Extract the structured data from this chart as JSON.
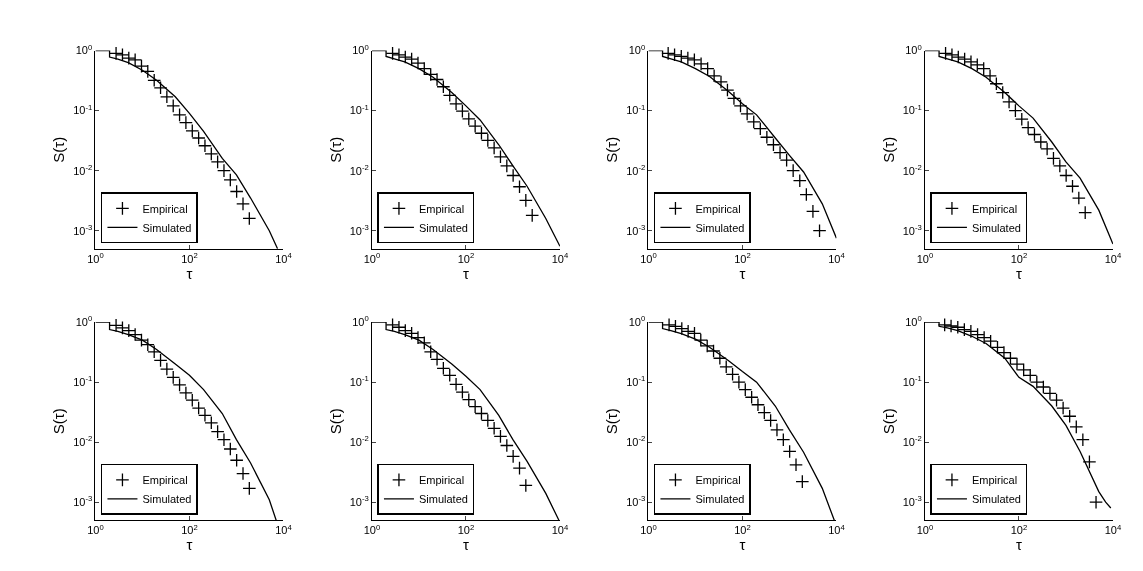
{
  "chart_data": [
    {
      "type": "scatter",
      "xlabel": "τ",
      "ylabel": "S(τ)",
      "log": "xy",
      "legend": "bottom left",
      "xlim": [
        1,
        10000
      ],
      "ylim": [
        0.0005,
        1
      ],
      "xticks": [
        {
          "value": 1,
          "label": "10$^{0}$"
        },
        {
          "value": 100,
          "label": "10$^{2}$"
        },
        {
          "value": 10000,
          "label": "10$^{4}$"
        }
      ],
      "yticks": [
        {
          "value": 0.001,
          "label": "10$^{-3}$"
        },
        {
          "value": 0.01,
          "label": "10$^{-2}$"
        },
        {
          "value": 0.1,
          "label": "10$^{-1}$"
        },
        {
          "value": 1,
          "label": "10$^{0}$"
        }
      ],
      "series": [
        {
          "name": "Empirical",
          "type": "scatter",
          "marker": "cross",
          "color": "#000000",
          "x": [
            2.75,
            3.76,
            5.13,
            7.0,
            9.55,
            13.0,
            17.8,
            24.3,
            33.1,
            45.2,
            61.7,
            84.1,
            115,
            157,
            214,
            292,
            398,
            543,
            741,
            1010,
            1380,
            1880
          ],
          "values": [
            0.9,
            0.85,
            0.75,
            0.7,
            0.55,
            0.45,
            0.32,
            0.24,
            0.17,
            0.12,
            0.085,
            0.063,
            0.046,
            0.035,
            0.026,
            0.019,
            0.014,
            0.01,
            0.007,
            0.0045,
            0.0028,
            0.0016
          ]
        },
        {
          "name": "Simulated",
          "type": "line",
          "line_style": "solid",
          "color": "#000000",
          "x": [
            1,
            2,
            2,
            3,
            5,
            10,
            20,
            50,
            100,
            200,
            500,
            1000,
            2000,
            5000,
            7500
          ],
          "values": [
            1,
            1,
            0.78,
            0.72,
            0.63,
            0.47,
            0.32,
            0.17,
            0.09,
            0.045,
            0.016,
            0.0085,
            0.0035,
            0.001,
            0.0005
          ]
        }
      ]
    },
    {
      "type": "scatter",
      "xlabel": "τ",
      "ylabel": "S(τ)",
      "log": "xy",
      "legend": "bottom left",
      "xlim": [
        1,
        10000
      ],
      "ylim": [
        0.0005,
        1
      ],
      "xticks": [
        {
          "value": 1,
          "label": "10$^{0}$"
        },
        {
          "value": 100,
          "label": "10$^{2}$"
        },
        {
          "value": 10000,
          "label": "10$^{4}$"
        }
      ],
      "yticks": [
        {
          "value": 0.001,
          "label": "10$^{-3}$"
        },
        {
          "value": 0.01,
          "label": "10$^{-2}$"
        },
        {
          "value": 0.1,
          "label": "10$^{-1}$"
        },
        {
          "value": 1,
          "label": "10$^{0}$"
        }
      ],
      "series": [
        {
          "name": "Empirical",
          "type": "scatter",
          "marker": "cross",
          "color": "#000000",
          "x": [
            2.75,
            3.76,
            5.13,
            7.0,
            9.55,
            13.0,
            17.8,
            24.3,
            33.1,
            45.2,
            61.7,
            84.1,
            115,
            157,
            214,
            292,
            398,
            543,
            741,
            1010,
            1380,
            1880,
            2570
          ],
          "values": [
            0.9,
            0.85,
            0.78,
            0.72,
            0.62,
            0.5,
            0.4,
            0.33,
            0.25,
            0.18,
            0.13,
            0.098,
            0.073,
            0.055,
            0.042,
            0.032,
            0.024,
            0.017,
            0.012,
            0.0083,
            0.0054,
            0.0032,
            0.0018
          ]
        },
        {
          "name": "Simulated",
          "type": "line",
          "line_style": "solid",
          "color": "#000000",
          "x": [
            1,
            2,
            2,
            3,
            5,
            10,
            20,
            50,
            100,
            200,
            500,
            1000,
            2000,
            5000,
            10000
          ],
          "values": [
            1,
            1,
            0.8,
            0.73,
            0.65,
            0.5,
            0.36,
            0.2,
            0.12,
            0.07,
            0.027,
            0.012,
            0.0055,
            0.0016,
            0.00055
          ]
        }
      ]
    },
    {
      "type": "scatter",
      "xlabel": "τ",
      "ylabel": "S(τ)",
      "log": "xy",
      "legend": "bottom left",
      "xlim": [
        1,
        10000
      ],
      "ylim": [
        0.0005,
        1
      ],
      "xticks": [
        {
          "value": 1,
          "label": "10$^{0}$"
        },
        {
          "value": 100,
          "label": "10$^{2}$"
        },
        {
          "value": 10000,
          "label": "10$^{4}$"
        }
      ],
      "yticks": [
        {
          "value": 0.001,
          "label": "10$^{-3}$"
        },
        {
          "value": 0.01,
          "label": "10$^{-2}$"
        },
        {
          "value": 0.1,
          "label": "10$^{-1}$"
        },
        {
          "value": 1,
          "label": "10$^{0}$"
        }
      ],
      "series": [
        {
          "name": "Empirical",
          "type": "scatter",
          "marker": "cross",
          "color": "#000000",
          "x": [
            2.63,
            3.6,
            5.0,
            6.9,
            9.5,
            13.2,
            18.2,
            25,
            35,
            48,
            66,
            91,
            126,
            174,
            240,
            331,
            457,
            631,
            871,
            1200,
            1660,
            2290,
            3160,
            4370
          ],
          "values": [
            0.9,
            0.85,
            0.8,
            0.75,
            0.7,
            0.6,
            0.5,
            0.38,
            0.3,
            0.22,
            0.16,
            0.12,
            0.088,
            0.065,
            0.05,
            0.036,
            0.027,
            0.02,
            0.015,
            0.01,
            0.0068,
            0.004,
            0.0021,
            0.001
          ]
        },
        {
          "name": "Simulated",
          "type": "line",
          "line_style": "solid",
          "color": "#000000",
          "x": [
            1,
            2,
            2,
            3,
            5,
            10,
            20,
            50,
            100,
            200,
            500,
            1000,
            2000,
            5000,
            10000
          ],
          "values": [
            1,
            1,
            0.8,
            0.73,
            0.65,
            0.5,
            0.37,
            0.21,
            0.13,
            0.085,
            0.035,
            0.018,
            0.0095,
            0.0028,
            0.00075
          ]
        }
      ]
    },
    {
      "type": "scatter",
      "xlabel": "τ",
      "ylabel": "S(τ)",
      "log": "xy",
      "legend": "bottom left",
      "xlim": [
        1,
        10000
      ],
      "ylim": [
        0.0005,
        1
      ],
      "xticks": [
        {
          "value": 1,
          "label": "10$^{0}$"
        },
        {
          "value": 100,
          "label": "10$^{2}$"
        },
        {
          "value": 10000,
          "label": "10$^{4}$"
        }
      ],
      "yticks": [
        {
          "value": 0.001,
          "label": "10$^{-3}$"
        },
        {
          "value": 0.01,
          "label": "10$^{-2}$"
        },
        {
          "value": 0.1,
          "label": "10$^{-1}$"
        },
        {
          "value": 1,
          "label": "10$^{0}$"
        }
      ],
      "series": [
        {
          "name": "Empirical",
          "type": "scatter",
          "marker": "cross",
          "color": "#000000",
          "x": [
            2.75,
            3.76,
            5.13,
            7.0,
            9.55,
            13.0,
            17.8,
            24.3,
            33.1,
            45.2,
            61.7,
            84.1,
            115,
            157,
            214,
            292,
            398,
            543,
            741,
            1010,
            1380,
            1880,
            2570
          ],
          "values": [
            0.9,
            0.85,
            0.78,
            0.72,
            0.65,
            0.58,
            0.5,
            0.38,
            0.28,
            0.2,
            0.14,
            0.1,
            0.072,
            0.052,
            0.04,
            0.03,
            0.023,
            0.016,
            0.012,
            0.0083,
            0.0055,
            0.0035,
            0.002
          ]
        },
        {
          "name": "Simulated",
          "type": "line",
          "line_style": "solid",
          "color": "#000000",
          "x": [
            1,
            2,
            2,
            3,
            5,
            10,
            20,
            50,
            100,
            200,
            500,
            1000,
            2000,
            5000,
            10000
          ],
          "values": [
            1,
            1,
            0.8,
            0.73,
            0.65,
            0.5,
            0.36,
            0.2,
            0.12,
            0.075,
            0.03,
            0.014,
            0.0075,
            0.0022,
            0.0006
          ]
        }
      ]
    },
    {
      "type": "scatter",
      "xlabel": "τ",
      "ylabel": "S(τ)",
      "log": "xy",
      "legend": "bottom left",
      "xlim": [
        1,
        10000
      ],
      "ylim": [
        0.0005,
        1
      ],
      "xticks": [
        {
          "value": 1,
          "label": "10$^{0}$"
        },
        {
          "value": 100,
          "label": "10$^{2}$"
        },
        {
          "value": 10000,
          "label": "10$^{4}$"
        }
      ],
      "yticks": [
        {
          "value": 0.001,
          "label": "10$^{-3}$"
        },
        {
          "value": 0.01,
          "label": "10$^{-2}$"
        },
        {
          "value": 0.1,
          "label": "10$^{-1}$"
        },
        {
          "value": 1,
          "label": "10$^{0}$"
        }
      ],
      "series": [
        {
          "name": "Empirical",
          "type": "scatter",
          "marker": "cross",
          "color": "#000000",
          "x": [
            2.75,
            3.76,
            5.13,
            7.0,
            9.55,
            13.0,
            17.8,
            24.3,
            33.1,
            45.2,
            61.7,
            84.1,
            115,
            157,
            214,
            292,
            398,
            543,
            741,
            1010,
            1380,
            1880
          ],
          "values": [
            0.88,
            0.8,
            0.72,
            0.62,
            0.5,
            0.42,
            0.32,
            0.23,
            0.165,
            0.12,
            0.09,
            0.066,
            0.05,
            0.037,
            0.028,
            0.021,
            0.015,
            0.011,
            0.0077,
            0.005,
            0.003,
            0.0017
          ]
        },
        {
          "name": "Simulated",
          "type": "line",
          "line_style": "solid",
          "color": "#000000",
          "x": [
            1,
            2,
            2,
            3,
            5,
            10,
            20,
            50,
            100,
            200,
            500,
            1000,
            2000,
            5000,
            7000
          ],
          "values": [
            1,
            1,
            0.75,
            0.7,
            0.62,
            0.5,
            0.35,
            0.2,
            0.13,
            0.075,
            0.03,
            0.011,
            0.0045,
            0.0011,
            0.0005
          ]
        }
      ]
    },
    {
      "type": "scatter",
      "xlabel": "τ",
      "ylabel": "S(τ)",
      "log": "xy",
      "legend": "bottom left",
      "xlim": [
        1,
        10000
      ],
      "ylim": [
        0.0005,
        1
      ],
      "xticks": [
        {
          "value": 1,
          "label": "10$^{0}$"
        },
        {
          "value": 100,
          "label": "10$^{2}$"
        },
        {
          "value": 10000,
          "label": "10$^{4}$"
        }
      ],
      "yticks": [
        {
          "value": 0.001,
          "label": "10$^{-3}$"
        },
        {
          "value": 0.01,
          "label": "10$^{-2}$"
        },
        {
          "value": 0.1,
          "label": "10$^{-1}$"
        },
        {
          "value": 1,
          "label": "10$^{0}$"
        }
      ],
      "series": [
        {
          "name": "Empirical",
          "type": "scatter",
          "marker": "cross",
          "color": "#000000",
          "x": [
            2.75,
            3.76,
            5.13,
            7.0,
            9.55,
            13.0,
            17.8,
            24.3,
            33.1,
            45.2,
            61.7,
            84.1,
            115,
            157,
            214,
            292,
            398,
            543,
            741,
            1010,
            1380,
            1880
          ],
          "values": [
            0.9,
            0.82,
            0.72,
            0.65,
            0.55,
            0.45,
            0.32,
            0.24,
            0.17,
            0.13,
            0.092,
            0.068,
            0.051,
            0.039,
            0.03,
            0.023,
            0.017,
            0.0125,
            0.0088,
            0.0058,
            0.0037,
            0.0019
          ]
        },
        {
          "name": "Simulated",
          "type": "line",
          "line_style": "solid",
          "color": "#000000",
          "x": [
            1,
            2,
            2,
            3,
            5,
            10,
            20,
            50,
            100,
            200,
            500,
            1000,
            2000,
            5000,
            9500
          ],
          "values": [
            1,
            1,
            0.75,
            0.7,
            0.62,
            0.5,
            0.35,
            0.2,
            0.125,
            0.075,
            0.028,
            0.011,
            0.0048,
            0.0014,
            0.0005
          ]
        }
      ]
    },
    {
      "type": "scatter",
      "xlabel": "τ",
      "ylabel": "S(τ)",
      "log": "xy",
      "legend": "bottom left",
      "xlim": [
        1,
        10000
      ],
      "ylim": [
        0.0005,
        1
      ],
      "xticks": [
        {
          "value": 1,
          "label": "10$^{0}$"
        },
        {
          "value": 100,
          "label": "10$^{2}$"
        },
        {
          "value": 10000,
          "label": "10$^{4}$"
        }
      ],
      "yticks": [
        {
          "value": 0.001,
          "label": "10$^{-3}$"
        },
        {
          "value": 0.01,
          "label": "10$^{-2}$"
        },
        {
          "value": 0.1,
          "label": "10$^{-1}$"
        },
        {
          "value": 1,
          "label": "10$^{0}$"
        }
      ],
      "series": [
        {
          "name": "Empirical",
          "type": "scatter",
          "marker": "cross",
          "color": "#000000",
          "x": [
            2.75,
            3.76,
            5.13,
            7.0,
            9.55,
            13.0,
            17.8,
            24.3,
            33.1,
            45.2,
            61.7,
            84.1,
            115,
            157,
            214,
            292,
            398,
            543,
            741,
            1010,
            1380,
            1880
          ],
          "values": [
            0.9,
            0.85,
            0.78,
            0.7,
            0.65,
            0.5,
            0.4,
            0.33,
            0.25,
            0.18,
            0.135,
            0.1,
            0.075,
            0.056,
            0.042,
            0.031,
            0.023,
            0.016,
            0.011,
            0.007,
            0.0042,
            0.0022
          ]
        },
        {
          "name": "Simulated",
          "type": "line",
          "line_style": "solid",
          "color": "#000000",
          "x": [
            1,
            2,
            2,
            3,
            5,
            10,
            20,
            50,
            100,
            200,
            500,
            1000,
            2000,
            5000,
            9000
          ],
          "values": [
            1,
            1,
            0.78,
            0.72,
            0.64,
            0.52,
            0.38,
            0.23,
            0.15,
            0.1,
            0.04,
            0.016,
            0.0068,
            0.0017,
            0.0005
          ]
        }
      ]
    },
    {
      "type": "scatter",
      "xlabel": "τ",
      "ylabel": "S(τ)",
      "log": "xy",
      "legend": "bottom left",
      "xlim": [
        1,
        10000
      ],
      "ylim": [
        0.0005,
        1
      ],
      "xticks": [
        {
          "value": 1,
          "label": "10$^{0}$"
        },
        {
          "value": 100,
          "label": "10$^{2}$"
        },
        {
          "value": 10000,
          "label": "10$^{4}$"
        }
      ],
      "yticks": [
        {
          "value": 0.001,
          "label": "10$^{-3}$"
        },
        {
          "value": 0.01,
          "label": "10$^{-2}$"
        },
        {
          "value": 0.1,
          "label": "10$^{-1}$"
        },
        {
          "value": 1,
          "label": "10$^{0}$"
        }
      ],
      "series": [
        {
          "name": "Empirical",
          "type": "scatter",
          "marker": "cross",
          "color": "#000000",
          "x": [
            2.63,
            3.6,
            5.0,
            6.9,
            9.5,
            13.2,
            18.2,
            25,
            35,
            48,
            66,
            91,
            126,
            174,
            240,
            331,
            457,
            631,
            871,
            1200,
            1660,
            2290,
            3160,
            4370
          ],
          "values": [
            0.9,
            0.86,
            0.82,
            0.75,
            0.7,
            0.62,
            0.55,
            0.48,
            0.38,
            0.31,
            0.25,
            0.2,
            0.16,
            0.13,
            0.1,
            0.083,
            0.065,
            0.05,
            0.037,
            0.027,
            0.018,
            0.011,
            0.0047,
            0.001
          ]
        },
        {
          "name": "Simulated",
          "type": "line",
          "line_style": "solid",
          "color": "#000000",
          "x": [
            1,
            2,
            2,
            3,
            5,
            10,
            20,
            50,
            100,
            200,
            500,
            1000,
            2000,
            5000,
            7000,
            9000
          ],
          "values": [
            1,
            1,
            0.85,
            0.8,
            0.72,
            0.58,
            0.44,
            0.25,
            0.12,
            0.085,
            0.04,
            0.019,
            0.007,
            0.0015,
            0.001,
            0.0008
          ]
        }
      ]
    }
  ]
}
